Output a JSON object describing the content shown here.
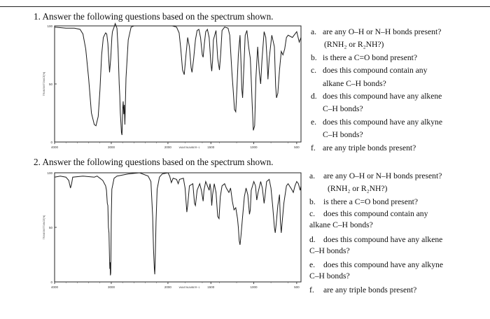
{
  "q1": {
    "heading": "1.   Answer the following questions based on the spectrum shown.",
    "spectrum": {
      "y_labels": [
        "100",
        "50",
        "0"
      ],
      "y_title": "TRANSMITTANCE[%]",
      "x_labels": [
        "4000",
        "3000",
        "2000",
        "1500",
        "1000",
        "500"
      ],
      "x_title": "WAVENUMBER−1",
      "trace": [
        [
          4000,
          99
        ],
        [
          3800,
          98
        ],
        [
          3650,
          98
        ],
        [
          3550,
          97
        ],
        [
          3500,
          93
        ],
        [
          3450,
          80
        ],
        [
          3400,
          55
        ],
        [
          3350,
          25
        ],
        [
          3300,
          15
        ],
        [
          3270,
          14
        ],
        [
          3230,
          22
        ],
        [
          3200,
          45
        ],
        [
          3170,
          75
        ],
        [
          3140,
          90
        ],
        [
          3100,
          94
        ],
        [
          3080,
          93
        ],
        [
          3060,
          85
        ],
        [
          3040,
          68
        ],
        [
          3030,
          60
        ],
        [
          3010,
          72
        ],
        [
          2990,
          90
        ],
        [
          2980,
          95
        ],
        [
          2950,
          99
        ],
        [
          2930,
          102
        ],
        [
          2900,
          98
        ],
        [
          2880,
          80
        ],
        [
          2860,
          50
        ],
        [
          2850,
          40
        ],
        [
          2840,
          25
        ],
        [
          2820,
          8
        ],
        [
          2810,
          6
        ],
        [
          2800,
          28
        ],
        [
          2790,
          35
        ],
        [
          2780,
          24
        ],
        [
          2770,
          32
        ],
        [
          2760,
          15
        ],
        [
          2750,
          35
        ],
        [
          2740,
          55
        ],
        [
          2700,
          88
        ],
        [
          2650,
          99
        ],
        [
          2600,
          100
        ],
        [
          2400,
          100
        ],
        [
          2200,
          100
        ],
        [
          2000,
          100
        ],
        [
          1950,
          100
        ],
        [
          1900,
          99
        ],
        [
          1870,
          94
        ],
        [
          1850,
          80
        ],
        [
          1830,
          62
        ],
        [
          1810,
          58
        ],
        [
          1790,
          75
        ],
        [
          1770,
          90
        ],
        [
          1750,
          82
        ],
        [
          1730,
          64
        ],
        [
          1720,
          60
        ],
        [
          1700,
          72
        ],
        [
          1680,
          88
        ],
        [
          1660,
          96
        ],
        [
          1640,
          97
        ],
        [
          1620,
          90
        ],
        [
          1600,
          75
        ],
        [
          1590,
          73
        ],
        [
          1575,
          85
        ],
        [
          1560,
          95
        ],
        [
          1540,
          97
        ],
        [
          1520,
          90
        ],
        [
          1500,
          68
        ],
        [
          1490,
          61
        ],
        [
          1480,
          70
        ],
        [
          1470,
          88
        ],
        [
          1440,
          96
        ],
        [
          1420,
          72
        ],
        [
          1400,
          62
        ],
        [
          1385,
          76
        ],
        [
          1370,
          96
        ],
        [
          1340,
          99
        ],
        [
          1300,
          98
        ],
        [
          1280,
          92
        ],
        [
          1255,
          60
        ],
        [
          1240,
          45
        ],
        [
          1225,
          28
        ],
        [
          1210,
          26
        ],
        [
          1195,
          48
        ],
        [
          1180,
          75
        ],
        [
          1160,
          92
        ],
        [
          1150,
          70
        ],
        [
          1140,
          46
        ],
        [
          1130,
          38
        ],
        [
          1120,
          56
        ],
        [
          1100,
          92
        ],
        [
          1080,
          96
        ],
        [
          1060,
          82
        ],
        [
          1040,
          72
        ],
        [
          1030,
          54
        ],
        [
          1020,
          35
        ],
        [
          1005,
          10
        ],
        [
          990,
          14
        ],
        [
          975,
          55
        ],
        [
          955,
          82
        ],
        [
          935,
          60
        ],
        [
          920,
          50
        ],
        [
          905,
          70
        ],
        [
          880,
          95
        ],
        [
          860,
          90
        ],
        [
          845,
          70
        ],
        [
          835,
          54
        ],
        [
          820,
          72
        ],
        [
          790,
          92
        ],
        [
          760,
          82
        ],
        [
          745,
          48
        ],
        [
          735,
          38
        ],
        [
          720,
          42
        ],
        [
          700,
          62
        ],
        [
          680,
          78
        ],
        [
          660,
          75
        ],
        [
          640,
          80
        ],
        [
          620,
          90
        ],
        [
          600,
          92
        ],
        [
          550,
          90
        ],
        [
          500,
          95
        ],
        [
          470,
          86
        ],
        [
          450,
          90
        ]
      ]
    },
    "questions": [
      {
        "marker": "a.",
        "text": "are any O–H or N–H bonds present?"
      },
      {
        "marker": "",
        "text": "(RNH₂ or R₂NH?)"
      },
      {
        "marker": "b.",
        "text": "is there a C=O bond present?"
      },
      {
        "marker": "c.",
        "text": "does this compound contain any"
      },
      {
        "marker": "",
        "text": "alkane C–H bonds?"
      },
      {
        "marker": "d.",
        "text": "does this compound have any alkene"
      },
      {
        "marker": "",
        "text": "C–H bonds?"
      },
      {
        "marker": "e.",
        "text": "does this compound have any alkyne"
      },
      {
        "marker": "",
        "text": "C–H bonds?"
      },
      {
        "marker": "f.",
        "text": "are any triple bonds present?"
      }
    ]
  },
  "q2": {
    "heading": "2.   Answer the following questions based on the spectrum shown.",
    "spectrum": {
      "y_labels": [
        "100",
        "50",
        "0"
      ],
      "y_title": "TRANSMITTANCE[%]",
      "x_labels": [
        "4000",
        "3000",
        "2000",
        "1500",
        "1000",
        "500"
      ],
      "x_title": "WAVENUMBER−1",
      "trace": [
        [
          4000,
          96
        ],
        [
          3900,
          97
        ],
        [
          3800,
          96
        ],
        [
          3750,
          93
        ],
        [
          3720,
          86
        ],
        [
          3700,
          90
        ],
        [
          3680,
          96
        ],
        [
          3500,
          97
        ],
        [
          3300,
          96
        ],
        [
          3250,
          97
        ],
        [
          3200,
          95
        ],
        [
          3150,
          93
        ],
        [
          3100,
          88
        ],
        [
          3085,
          84
        ],
        [
          3070,
          72
        ],
        [
          3060,
          70
        ],
        [
          3050,
          50
        ],
        [
          3040,
          45
        ],
        [
          3030,
          20
        ],
        [
          3025,
          12
        ],
        [
          3020,
          18
        ],
        [
          3015,
          6
        ],
        [
          3010,
          8
        ],
        [
          3005,
          30
        ],
        [
          3000,
          60
        ],
        [
          2990,
          85
        ],
        [
          2950,
          95
        ],
        [
          2900,
          97
        ],
        [
          2700,
          99
        ],
        [
          2500,
          100
        ],
        [
          2350,
          97
        ],
        [
          2300,
          92
        ],
        [
          2270,
          60
        ],
        [
          2255,
          30
        ],
        [
          2240,
          12
        ],
        [
          2232,
          7
        ],
        [
          2225,
          18
        ],
        [
          2210,
          55
        ],
        [
          2190,
          85
        ],
        [
          2150,
          96
        ],
        [
          2100,
          99
        ],
        [
          2000,
          100
        ],
        [
          1980,
          97
        ],
        [
          1960,
          91
        ],
        [
          1940,
          95
        ],
        [
          1900,
          94
        ],
        [
          1880,
          90
        ],
        [
          1865,
          94
        ],
        [
          1820,
          95
        ],
        [
          1800,
          86
        ],
        [
          1780,
          64
        ],
        [
          1770,
          70
        ],
        [
          1750,
          88
        ],
        [
          1710,
          90
        ],
        [
          1690,
          72
        ],
        [
          1680,
          70
        ],
        [
          1660,
          84
        ],
        [
          1630,
          90
        ],
        [
          1610,
          84
        ],
        [
          1590,
          74
        ],
        [
          1580,
          84
        ],
        [
          1560,
          92
        ],
        [
          1540,
          88
        ],
        [
          1520,
          84
        ],
        [
          1510,
          90
        ],
        [
          1500,
          85
        ],
        [
          1490,
          70
        ],
        [
          1480,
          80
        ],
        [
          1460,
          90
        ],
        [
          1440,
          82
        ],
        [
          1420,
          60
        ],
        [
          1405,
          58
        ],
        [
          1390,
          78
        ],
        [
          1370,
          88
        ],
        [
          1340,
          90
        ],
        [
          1320,
          86
        ],
        [
          1290,
          82
        ],
        [
          1270,
          86
        ],
        [
          1250,
          74
        ],
        [
          1230,
          66
        ],
        [
          1210,
          68
        ],
        [
          1190,
          58
        ],
        [
          1180,
          50
        ],
        [
          1170,
          38
        ],
        [
          1160,
          34
        ],
        [
          1150,
          42
        ],
        [
          1130,
          60
        ],
        [
          1110,
          78
        ],
        [
          1090,
          86
        ],
        [
          1070,
          80
        ],
        [
          1050,
          62
        ],
        [
          1040,
          66
        ],
        [
          1030,
          84
        ],
        [
          1000,
          92
        ],
        [
          980,
          88
        ],
        [
          965,
          75
        ],
        [
          950,
          82
        ],
        [
          920,
          92
        ],
        [
          900,
          86
        ],
        [
          880,
          72
        ],
        [
          870,
          78
        ],
        [
          850,
          92
        ],
        [
          820,
          94
        ],
        [
          800,
          86
        ],
        [
          780,
          70
        ],
        [
          760,
          50
        ],
        [
          750,
          45
        ],
        [
          740,
          52
        ],
        [
          720,
          70
        ],
        [
          700,
          80
        ],
        [
          690,
          55
        ],
        [
          680,
          45
        ],
        [
          670,
          54
        ],
        [
          650,
          72
        ],
        [
          620,
          88
        ],
        [
          600,
          90
        ],
        [
          560,
          85
        ],
        [
          540,
          82
        ],
        [
          520,
          88
        ],
        [
          500,
          92
        ],
        [
          480,
          90
        ],
        [
          460,
          84
        ],
        [
          450,
          88
        ]
      ]
    },
    "questions": [
      {
        "marker": "a.",
        "text": "are any O–H or N–H bonds present?"
      },
      {
        "marker": "",
        "text": "(RNH₂ or R₂NH?)"
      },
      {
        "marker": "b.",
        "text": "is there a C=O bond present?"
      },
      {
        "marker": "c.",
        "text": "does this compound contain any"
      },
      {
        "marker": "",
        "text": "alkane C–H bonds?"
      },
      {
        "marker": "d.",
        "text": "does this compound have any alkene"
      },
      {
        "marker": "",
        "text": "C–H bonds?"
      },
      {
        "marker": "e.",
        "text": "does this compound have any alkyne"
      },
      {
        "marker": "",
        "text": "C–H bonds?"
      },
      {
        "marker": "f.",
        "text": "are any triple bonds present?"
      }
    ]
  }
}
